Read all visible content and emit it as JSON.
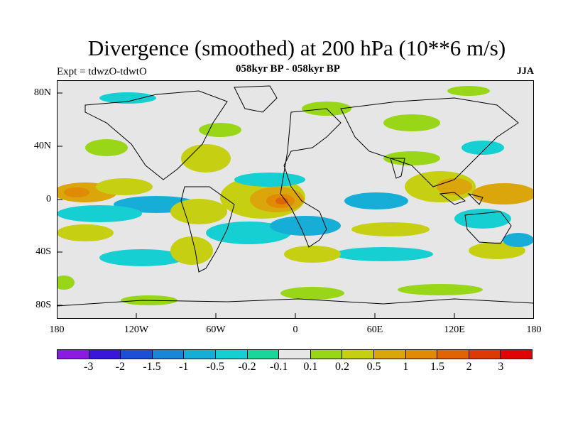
{
  "title": "Divergence (smoothed) at 200 hPa (10**6 m/s)",
  "subtitle_left": "Expt = tdwzO-tdwtO",
  "subtitle_center": "058kyr BP - 058kyr BP",
  "subtitle_right": "JJA",
  "lat_labels": [
    "80N",
    "40N",
    "0",
    "40S",
    "80S"
  ],
  "lon_labels": [
    "180",
    "120W",
    "60W",
    "0",
    "60E",
    "120E",
    "180"
  ],
  "colorbar": {
    "colors": [
      "#8c1ae0",
      "#3a16d8",
      "#1a4fd6",
      "#1a86d8",
      "#16aed6",
      "#16cfd2",
      "#1ad69a",
      "#e6e6e6",
      "#9ad618",
      "#c6cf12",
      "#dba50c",
      "#e08a06",
      "#df6404",
      "#dc3a04",
      "#e00404"
    ],
    "labels": [
      "-3",
      "-2",
      "-1.5",
      "-1",
      "-0.5",
      "-0.2",
      "-0.1",
      "0.1",
      "0.2",
      "0.5",
      "1",
      "1.5",
      "2",
      "3"
    ]
  },
  "map": {
    "background": "#e6e6e6",
    "projection": "cylindrical equidistant",
    "lon_range": [
      -180,
      180
    ],
    "lat_range": [
      -90,
      90
    ]
  }
}
